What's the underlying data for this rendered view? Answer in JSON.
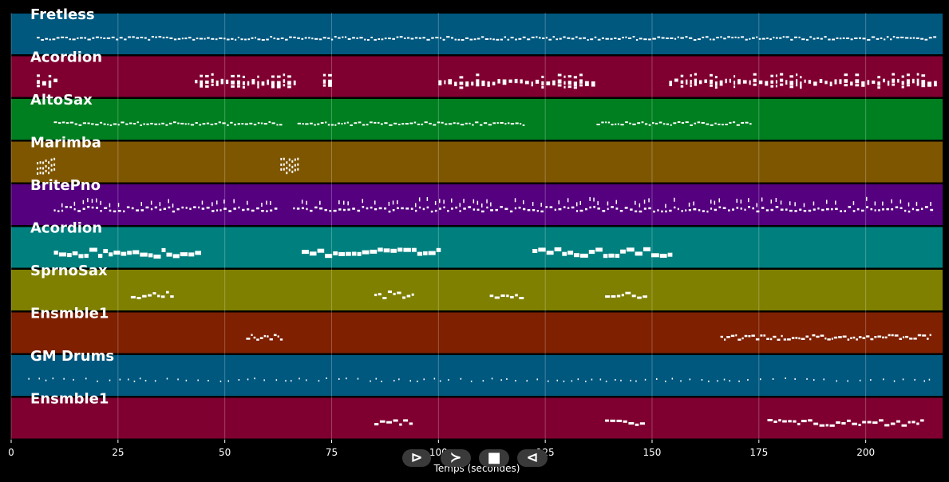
{
  "chart_data": {
    "type": "piano-roll",
    "xlabel": "Temps (secondes)",
    "xlim": [
      0,
      218
    ],
    "xticks": [
      0,
      25,
      50,
      75,
      100,
      125,
      150,
      175,
      200
    ],
    "grid": true,
    "tracks": [
      {
        "name": "Fretless",
        "color": "#00587f",
        "segments": [
          [
            6,
            216
          ]
        ],
        "style": "dense-small"
      },
      {
        "name": "Acordion",
        "color": "#7f0030",
        "segments": [
          [
            6,
            10
          ],
          [
            43,
            67
          ],
          [
            73,
            75
          ],
          [
            100,
            136
          ],
          [
            154,
            216
          ]
        ],
        "style": "small-bars"
      },
      {
        "name": "AltoSax",
        "color": "#007f20",
        "segments": [
          [
            10,
            63
          ],
          [
            67,
            120
          ],
          [
            137,
            173
          ]
        ],
        "style": "dense-small"
      },
      {
        "name": "Marimba",
        "color": "#7f5600",
        "segments": [
          [
            6,
            10
          ],
          [
            63,
            67
          ]
        ],
        "style": "cluster"
      },
      {
        "name": "BritePno",
        "color": "#55007f",
        "segments": [
          [
            10,
            62
          ],
          [
            66,
            216
          ]
        ],
        "style": "chords"
      },
      {
        "name": "Acordion",
        "color": "#007f7f",
        "segments": [
          [
            10,
            44
          ],
          [
            68,
            100
          ],
          [
            122,
            154
          ]
        ],
        "style": "thick"
      },
      {
        "name": "SprnoSax",
        "color": "#7f7f00",
        "segments": [
          [
            28,
            38
          ],
          [
            85,
            94
          ],
          [
            112,
            119
          ],
          [
            139,
            148
          ]
        ],
        "style": "medium"
      },
      {
        "name": "Ensmble1",
        "color": "#7f2000",
        "segments": [
          [
            55,
            63
          ],
          [
            166,
            215
          ]
        ],
        "style": "medium-dense"
      },
      {
        "name": "GM Drums",
        "color": "#00587f",
        "segments": [
          [
            4,
            216
          ]
        ],
        "style": "sparse-ticks"
      },
      {
        "name": "Ensmble1",
        "color": "#7f0030",
        "segments": [
          [
            85,
            94
          ],
          [
            139,
            148
          ],
          [
            177,
            213
          ]
        ],
        "style": "medium"
      }
    ]
  },
  "controls": {
    "play_label": "⊳",
    "next_label": "≻",
    "stop_label": "■",
    "back_label": "⊲"
  }
}
